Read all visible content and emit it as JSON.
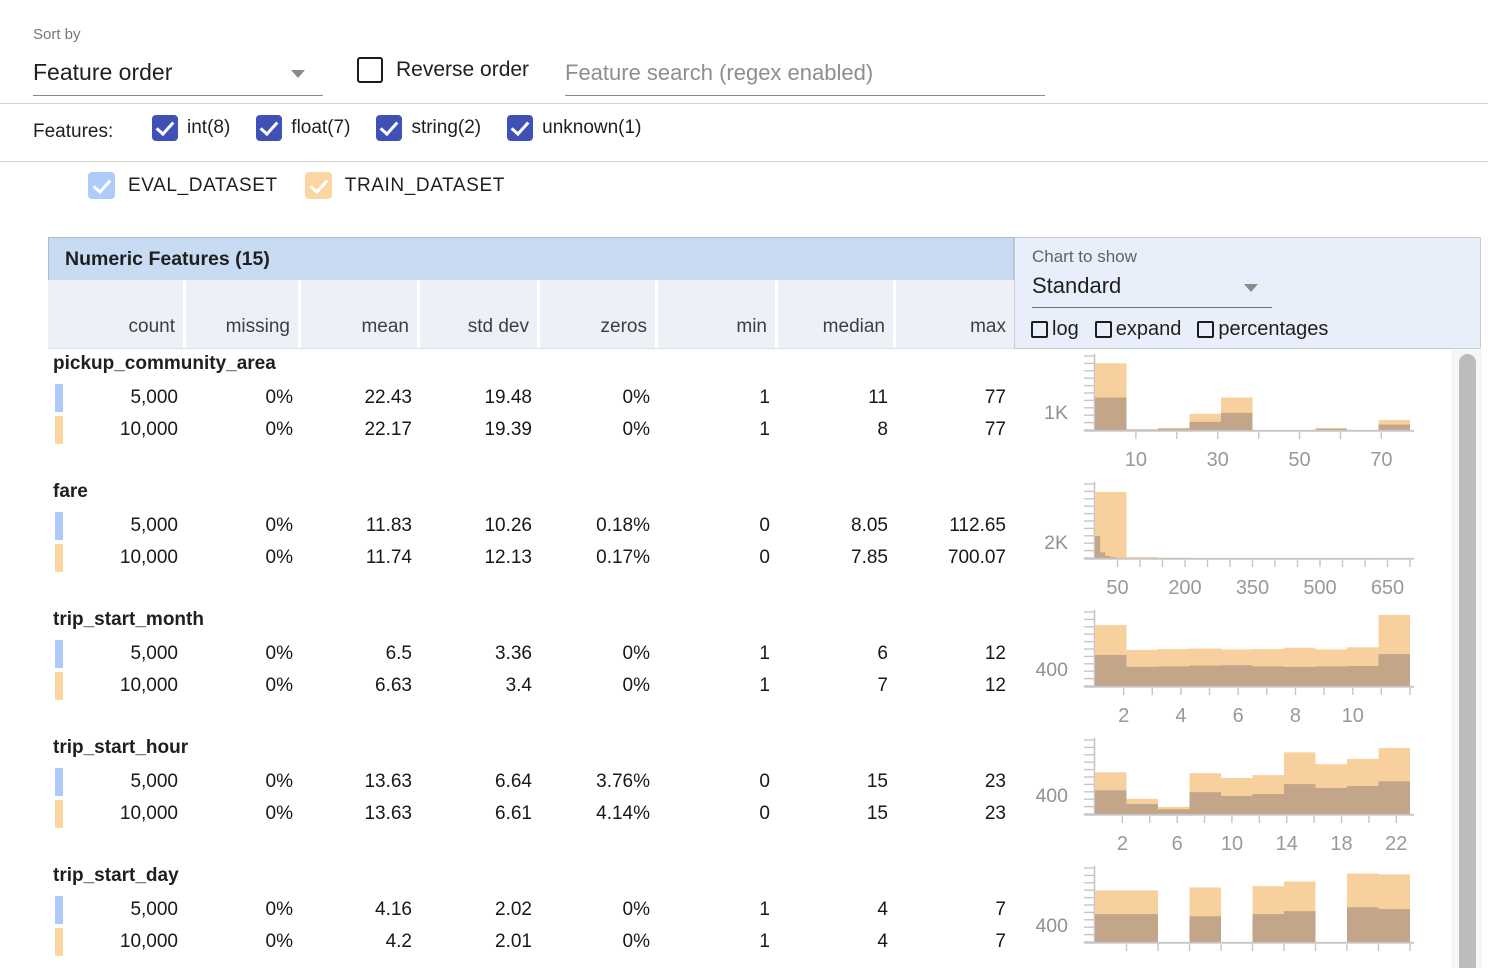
{
  "toolbar": {
    "sort_by_label": "Sort by",
    "sort_by_value": "Feature order",
    "reverse_order_label": "Reverse order",
    "reverse_order_checked": false,
    "search_placeholder": "Feature search (regex enabled)"
  },
  "features_bar": {
    "label": "Features:",
    "filters": [
      {
        "label": "int(8)",
        "checked": true
      },
      {
        "label": "float(7)",
        "checked": true
      },
      {
        "label": "string(2)",
        "checked": true
      },
      {
        "label": "unknown(1)",
        "checked": true
      }
    ]
  },
  "datasets": [
    {
      "label": "EVAL_DATASET",
      "color": "#aecbfa",
      "checked": true
    },
    {
      "label": "TRAIN_DATASET",
      "color": "#fbd6a2",
      "checked": true
    }
  ],
  "colors": {
    "filter_checkbox": "#3f51b5",
    "table_title_bg": "#c9dbf3",
    "column_header_bg": "#edf1f7",
    "chart_panel_bg": "#e9effa",
    "train_bar": "#f8d09d",
    "eval_overlay": "rgba(96,90,102,0.35)",
    "axis": "#c6c6c6",
    "tick_label": "#98999c"
  },
  "chart_panel": {
    "label": "Chart to show",
    "selected": "Standard",
    "options": [
      {
        "label": "log",
        "checked": false
      },
      {
        "label": "expand",
        "checked": false
      },
      {
        "label": "percentages",
        "checked": false
      }
    ]
  },
  "table": {
    "title": "Numeric Features (15)",
    "columns": [
      "count",
      "missing",
      "mean",
      "std dev",
      "zeros",
      "min",
      "median",
      "max"
    ],
    "rows": [
      {
        "feature": "pickup_community_area",
        "series": [
          {
            "dataset": "EVAL_DATASET",
            "values": [
              "5,000",
              "0%",
              "22.43",
              "19.48",
              "0%",
              "1",
              "11",
              "77"
            ]
          },
          {
            "dataset": "TRAIN_DATASET",
            "values": [
              "10,000",
              "0%",
              "22.17",
              "19.39",
              "0%",
              "1",
              "8",
              "77"
            ]
          }
        ]
      },
      {
        "feature": "fare",
        "series": [
          {
            "dataset": "EVAL_DATASET",
            "values": [
              "5,000",
              "0%",
              "11.83",
              "10.26",
              "0.18%",
              "0",
              "8.05",
              "112.65"
            ]
          },
          {
            "dataset": "TRAIN_DATASET",
            "values": [
              "10,000",
              "0%",
              "11.74",
              "12.13",
              "0.17%",
              "0",
              "7.85",
              "700.07"
            ]
          }
        ]
      },
      {
        "feature": "trip_start_month",
        "series": [
          {
            "dataset": "EVAL_DATASET",
            "values": [
              "5,000",
              "0%",
              "6.5",
              "3.36",
              "0%",
              "1",
              "6",
              "12"
            ]
          },
          {
            "dataset": "TRAIN_DATASET",
            "values": [
              "10,000",
              "0%",
              "6.63",
              "3.4",
              "0%",
              "1",
              "7",
              "12"
            ]
          }
        ]
      },
      {
        "feature": "trip_start_hour",
        "series": [
          {
            "dataset": "EVAL_DATASET",
            "values": [
              "5,000",
              "0%",
              "13.63",
              "6.64",
              "3.76%",
              "0",
              "15",
              "23"
            ]
          },
          {
            "dataset": "TRAIN_DATASET",
            "values": [
              "10,000",
              "0%",
              "13.63",
              "6.61",
              "4.14%",
              "0",
              "15",
              "23"
            ]
          }
        ]
      },
      {
        "feature": "trip_start_day",
        "series": [
          {
            "dataset": "EVAL_DATASET",
            "values": [
              "5,000",
              "0%",
              "4.16",
              "2.02",
              "0%",
              "1",
              "4",
              "7"
            ]
          },
          {
            "dataset": "TRAIN_DATASET",
            "values": [
              "10,000",
              "0%",
              "4.2",
              "2.01",
              "0%",
              "1",
              "4",
              "7"
            ]
          }
        ]
      }
    ]
  },
  "chart_data": [
    {
      "type": "bar",
      "subtype": "overlaid-histogram",
      "feature": "pickup_community_area",
      "xmin": 0,
      "xmax": 77,
      "xtick_step": 10,
      "xticks_labeled": [
        10,
        30,
        50,
        70
      ],
      "ytick": {
        "label": "1K",
        "value": 1000
      },
      "ymax": 4100,
      "legend_position": "none",
      "grid": false,
      "series": [
        {
          "name": "TRAIN_DATASET",
          "bars": [
            [
              0,
              7.7,
              3700
            ],
            [
              7.7,
              15.4,
              40
            ],
            [
              15.4,
              23.1,
              120
            ],
            [
              23.1,
              30.8,
              900
            ],
            [
              30.8,
              38.5,
              1800
            ],
            [
              53.9,
              61.6,
              120
            ],
            [
              69.3,
              77,
              550
            ]
          ]
        },
        {
          "name": "EVAL_DATASET",
          "bars": [
            [
              0,
              7.7,
              1800
            ],
            [
              7.7,
              15.4,
              30
            ],
            [
              15.4,
              23.1,
              70
            ],
            [
              23.1,
              30.8,
              450
            ],
            [
              30.8,
              38.5,
              950
            ],
            [
              53.9,
              61.6,
              60
            ],
            [
              69.3,
              77,
              300
            ]
          ]
        }
      ]
    },
    {
      "type": "bar",
      "subtype": "overlaid-histogram",
      "feature": "fare",
      "xmin": 0,
      "xmax": 700,
      "xtick_step": 50,
      "xticks_labeled": [
        50,
        200,
        350,
        500,
        650
      ],
      "ytick": {
        "label": "2K",
        "value": 2000
      },
      "ymax": 9250,
      "legend_position": "none",
      "grid": false,
      "series": [
        {
          "name": "TRAIN_DATASET",
          "bars": [
            [
              0,
              70,
              8250
            ],
            [
              70,
              140,
              130
            ],
            [
              140,
              210,
              40
            ],
            [
              630,
              700,
              20
            ]
          ]
        },
        {
          "name": "EVAL_DATASET",
          "bars": [
            [
              0,
              11.3,
              2750
            ],
            [
              11.3,
              22.6,
              700
            ],
            [
              22.6,
              33.9,
              250
            ],
            [
              33.9,
              45.2,
              120
            ]
          ]
        }
      ]
    },
    {
      "type": "bar",
      "subtype": "overlaid-histogram",
      "feature": "trip_start_month",
      "xmin": 1,
      "xmax": 12,
      "xtick_step": 1,
      "xticks_labeled": [
        2,
        4,
        6,
        8,
        10
      ],
      "ytick": {
        "label": "400",
        "value": 400
      },
      "ymax": 1740,
      "legend_position": "none",
      "grid": false,
      "series": [
        {
          "name": "TRAIN_DATASET",
          "bars": [
            [
              1,
              2.1,
              1430
            ],
            [
              2.1,
              3.2,
              850
            ],
            [
              3.2,
              4.3,
              870
            ],
            [
              4.3,
              5.4,
              880
            ],
            [
              5.4,
              6.5,
              860
            ],
            [
              6.5,
              7.6,
              870
            ],
            [
              7.6,
              8.7,
              900
            ],
            [
              8.7,
              9.8,
              860
            ],
            [
              9.8,
              10.9,
              910
            ],
            [
              10.9,
              12,
              1670
            ]
          ]
        },
        {
          "name": "EVAL_DATASET",
          "bars": [
            [
              1,
              2.1,
              730
            ],
            [
              2.1,
              3.2,
              450
            ],
            [
              3.2,
              4.3,
              460
            ],
            [
              4.3,
              5.4,
              480
            ],
            [
              5.4,
              6.5,
              490
            ],
            [
              6.5,
              7.6,
              460
            ],
            [
              7.6,
              8.7,
              450
            ],
            [
              8.7,
              9.8,
              460
            ],
            [
              9.8,
              10.9,
              470
            ],
            [
              10.9,
              12,
              750
            ]
          ]
        }
      ]
    },
    {
      "type": "bar",
      "subtype": "overlaid-histogram",
      "feature": "trip_start_hour",
      "xmin": 0,
      "xmax": 23,
      "xtick_step": 2,
      "xticks_labeled": [
        2,
        6,
        10,
        14,
        18,
        22
      ],
      "ytick": {
        "label": "400",
        "value": 400
      },
      "ymax": 1560,
      "legend_position": "none",
      "grid": false,
      "series": [
        {
          "name": "TRAIN_DATASET",
          "bars": [
            [
              0,
              2.3,
              880
            ],
            [
              2.3,
              4.6,
              320
            ],
            [
              4.6,
              6.9,
              150
            ],
            [
              6.9,
              9.2,
              860
            ],
            [
              9.2,
              11.5,
              760
            ],
            [
              11.5,
              13.8,
              820
            ],
            [
              13.8,
              16.1,
              1300
            ],
            [
              16.1,
              18.4,
              1050
            ],
            [
              18.4,
              20.7,
              1160
            ],
            [
              20.7,
              23,
              1390
            ]
          ]
        },
        {
          "name": "EVAL_DATASET",
          "bars": [
            [
              0,
              2.3,
              500
            ],
            [
              2.3,
              4.6,
              210
            ],
            [
              4.6,
              6.9,
              100
            ],
            [
              6.9,
              9.2,
              460
            ],
            [
              9.2,
              11.5,
              380
            ],
            [
              11.5,
              13.8,
              420
            ],
            [
              13.8,
              16.1,
              630
            ],
            [
              16.1,
              18.4,
              550
            ],
            [
              18.4,
              20.7,
              590
            ],
            [
              20.7,
              23,
              690
            ]
          ]
        }
      ]
    },
    {
      "type": "bar",
      "subtype": "overlaid-histogram",
      "feature": "trip_start_day",
      "xmin": 1,
      "xmax": 7,
      "xtick_step": 0.6,
      "xticks_labeled": [],
      "ytick": {
        "label": "400",
        "value": 400
      },
      "ymax": 1750,
      "legend_position": "none",
      "grid": false,
      "series": [
        {
          "name": "TRAIN_DATASET",
          "bars": [
            [
              1,
              1.6,
              1220
            ],
            [
              1.6,
              2.2,
              1220
            ],
            [
              2.8,
              3.4,
              1290
            ],
            [
              4,
              4.6,
              1320
            ],
            [
              4.6,
              5.2,
              1430
            ],
            [
              5.8,
              6.4,
              1620
            ],
            [
              6.4,
              7,
              1600
            ]
          ]
        },
        {
          "name": "EVAL_DATASET",
          "bars": [
            [
              1,
              1.6,
              660
            ],
            [
              1.6,
              2.2,
              660
            ],
            [
              2.8,
              3.4,
              610
            ],
            [
              4,
              4.6,
              660
            ],
            [
              4.6,
              5.2,
              730
            ],
            [
              5.8,
              6.4,
              820
            ],
            [
              6.4,
              7,
              780
            ]
          ]
        }
      ]
    }
  ]
}
